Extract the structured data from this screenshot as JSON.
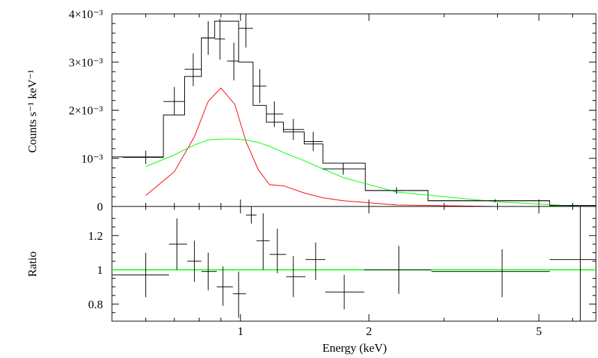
{
  "chart_data": [
    {
      "type": "line",
      "panel": "spectrum",
      "xscale": "log",
      "xlim": [
        0.5,
        6.8
      ],
      "ylim": [
        0,
        0.004
      ],
      "ylabel": "Counts s⁻¹ keV⁻¹",
      "yticks": [
        {
          "value": 0,
          "label": "0"
        },
        {
          "value": 0.001,
          "label": "10⁻³"
        },
        {
          "value": 0.002,
          "label": "2×10⁻³"
        },
        {
          "value": 0.003,
          "label": "3×10⁻³"
        },
        {
          "value": 0.004,
          "label": "4×10⁻³"
        }
      ],
      "model_steps": [
        {
          "x0": 0.5,
          "x1": 0.66,
          "y": 0.00103
        },
        {
          "x0": 0.66,
          "x1": 0.74,
          "y": 0.0019
        },
        {
          "x0": 0.74,
          "x1": 0.81,
          "y": 0.0027
        },
        {
          "x0": 0.81,
          "x1": 0.87,
          "y": 0.0035
        },
        {
          "x0": 0.87,
          "x1": 0.92,
          "y": 0.00385
        },
        {
          "x0": 0.92,
          "x1": 0.99,
          "y": 0.00385
        },
        {
          "x0": 0.99,
          "x1": 1.07,
          "y": 0.003
        },
        {
          "x0": 1.07,
          "x1": 1.15,
          "y": 0.0021
        },
        {
          "x0": 1.15,
          "x1": 1.26,
          "y": 0.00175
        },
        {
          "x0": 1.26,
          "x1": 1.41,
          "y": 0.00155
        },
        {
          "x0": 1.41,
          "x1": 1.56,
          "y": 0.0013
        },
        {
          "x0": 1.56,
          "x1": 1.96,
          "y": 0.0009
        },
        {
          "x0": 1.96,
          "x1": 2.75,
          "y": 0.00033
        },
        {
          "x0": 2.75,
          "x1": 5.3,
          "y": 0.00012
        },
        {
          "x0": 5.3,
          "x1": 6.8,
          "y": 2e-05
        }
      ],
      "data_points": [
        {
          "x": 0.6,
          "xerr": [
            0.53,
            0.66
          ],
          "y": 0.00102,
          "yerr": [
            0.00088,
            0.00116
          ]
        },
        {
          "x": 0.7,
          "xerr": [
            0.66,
            0.74
          ],
          "y": 0.00218,
          "yerr": [
            0.0019,
            0.00248
          ]
        },
        {
          "x": 0.775,
          "xerr": [
            0.74,
            0.81
          ],
          "y": 0.00285,
          "yerr": [
            0.0025,
            0.00318
          ]
        },
        {
          "x": 0.84,
          "xerr": [
            0.81,
            0.87
          ],
          "y": 0.0035,
          "yerr": [
            0.00315,
            0.00385
          ]
        },
        {
          "x": 0.895,
          "xerr": [
            0.87,
            0.92
          ],
          "y": 0.00348,
          "yerr": [
            0.00305,
            0.0039
          ]
        },
        {
          "x": 0.965,
          "xerr": [
            0.93,
            0.99
          ],
          "y": 0.00302,
          "yerr": [
            0.00262,
            0.0034
          ]
        },
        {
          "x": 1.03,
          "xerr": [
            0.99,
            1.07
          ],
          "y": 0.0037,
          "yerr": [
            0.0033,
            0.004
          ]
        },
        {
          "x": 1.11,
          "xerr": [
            1.07,
            1.15
          ],
          "y": 0.0025,
          "yerr": [
            0.00215,
            0.00285
          ]
        },
        {
          "x": 1.2,
          "xerr": [
            1.15,
            1.26
          ],
          "y": 0.00192,
          "yerr": [
            0.00165,
            0.00218
          ]
        },
        {
          "x": 1.33,
          "xerr": [
            1.26,
            1.41
          ],
          "y": 0.0016,
          "yerr": [
            0.00138,
            0.00182
          ]
        },
        {
          "x": 1.48,
          "xerr": [
            1.41,
            1.56
          ],
          "y": 0.00135,
          "yerr": [
            0.00115,
            0.00155
          ]
        },
        {
          "x": 1.74,
          "xerr": [
            1.56,
            1.96
          ],
          "y": 0.00078,
          "yerr": [
            0.00066,
            0.0009
          ]
        },
        {
          "x": 2.32,
          "xerr": [
            1.96,
            2.75
          ],
          "y": 0.00033,
          "yerr": [
            0.00026,
            0.0004
          ]
        },
        {
          "x": 3.95,
          "xerr": [
            2.75,
            5.3
          ],
          "y": 0.00012,
          "yerr": [
            9e-05,
            0.00015
          ]
        },
        {
          "x": 6.0,
          "xerr": [
            5.3,
            6.8
          ],
          "y": 2e-05,
          "yerr": [
            0.0,
            4e-05
          ]
        }
      ],
      "series": [
        {
          "color": "#ff0000",
          "x": [
            0.6,
            0.7,
            0.78,
            0.84,
            0.9,
            0.97,
            1.03,
            1.1,
            1.17,
            1.26,
            1.41,
            1.56,
            1.74,
            2.32,
            3.95,
            6.0
          ],
          "y": [
            0.00023,
            0.00072,
            0.00145,
            0.00218,
            0.00246,
            0.00212,
            0.00135,
            0.00077,
            0.00045,
            0.00043,
            0.00028,
            0.00018,
            0.00012,
            3e-05,
            0.0,
            0.0
          ]
        },
        {
          "color": "#00ff00",
          "x": [
            0.6,
            0.7,
            0.78,
            0.84,
            0.9,
            0.97,
            1.03,
            1.1,
            1.17,
            1.26,
            1.41,
            1.56,
            1.74,
            2.32,
            3.95,
            6.0
          ],
          "y": [
            0.00083,
            0.00107,
            0.00128,
            0.00138,
            0.0014,
            0.0014,
            0.00138,
            0.00133,
            0.00125,
            0.00112,
            0.00095,
            0.00078,
            0.0006,
            0.0003,
            0.0001,
            1e-05
          ]
        }
      ]
    },
    {
      "type": "scatter",
      "panel": "ratio",
      "xscale": "log",
      "xlim": [
        0.5,
        6.8
      ],
      "ylim": [
        0.7,
        1.37
      ],
      "xlabel": "Energy (keV)",
      "ylabel": "Ratio",
      "xticks": [
        {
          "value": 1,
          "label": "1"
        },
        {
          "value": 2,
          "label": "2"
        },
        {
          "value": 5,
          "label": "5"
        }
      ],
      "yticks": [
        {
          "value": 0.8,
          "label": "0.8"
        },
        {
          "value": 1.0,
          "label": "1"
        },
        {
          "value": 1.2,
          "label": "1.2"
        }
      ],
      "reference_line": {
        "y": 1.0,
        "color": "#00ff00"
      },
      "data_points": [
        {
          "x": 0.6,
          "xerr": [
            0.5,
            0.68
          ],
          "y": 0.97,
          "yerr": [
            0.84,
            1.1
          ]
        },
        {
          "x": 0.71,
          "xerr": [
            0.68,
            0.75
          ],
          "y": 1.15,
          "yerr": [
            1.0,
            1.3
          ]
        },
        {
          "x": 0.78,
          "xerr": [
            0.75,
            0.81
          ],
          "y": 1.05,
          "yerr": [
            0.93,
            1.17
          ]
        },
        {
          "x": 0.84,
          "xerr": [
            0.81,
            0.88
          ],
          "y": 0.99,
          "yerr": [
            0.88,
            1.1
          ]
        },
        {
          "x": 0.91,
          "xerr": [
            0.88,
            0.96
          ],
          "y": 0.9,
          "yerr": [
            0.79,
            1.02
          ]
        },
        {
          "x": 0.99,
          "xerr": [
            0.96,
            1.03
          ],
          "y": 0.86,
          "yerr": [
            0.72,
            0.99
          ]
        },
        {
          "x": 1.06,
          "xerr": [
            1.03,
            1.09
          ],
          "y": 1.32,
          "yerr": [
            1.27,
            1.37
          ]
        },
        {
          "x": 1.13,
          "xerr": [
            1.09,
            1.17
          ],
          "y": 1.17,
          "yerr": [
            1.0,
            1.33
          ]
        },
        {
          "x": 1.22,
          "xerr": [
            1.17,
            1.28
          ],
          "y": 1.09,
          "yerr": [
            0.98,
            1.24
          ]
        },
        {
          "x": 1.33,
          "xerr": [
            1.28,
            1.42
          ],
          "y": 0.96,
          "yerr": [
            0.84,
            1.08
          ]
        },
        {
          "x": 1.5,
          "xerr": [
            1.42,
            1.58
          ],
          "y": 1.06,
          "yerr": [
            0.94,
            1.16
          ]
        },
        {
          "x": 1.75,
          "xerr": [
            1.58,
            1.95
          ],
          "y": 0.87,
          "yerr": [
            0.77,
            0.97
          ]
        },
        {
          "x": 2.35,
          "xerr": [
            1.95,
            2.8
          ],
          "y": 1.0,
          "yerr": [
            0.86,
            1.14
          ]
        },
        {
          "x": 4.1,
          "xerr": [
            2.8,
            5.3
          ],
          "y": 0.99,
          "yerr": [
            0.84,
            1.12
          ]
        },
        {
          "x": 6.25,
          "xerr": [
            5.3,
            6.8
          ],
          "y": 1.06,
          "yerr": [
            0.7,
            1.37
          ]
        }
      ]
    }
  ]
}
